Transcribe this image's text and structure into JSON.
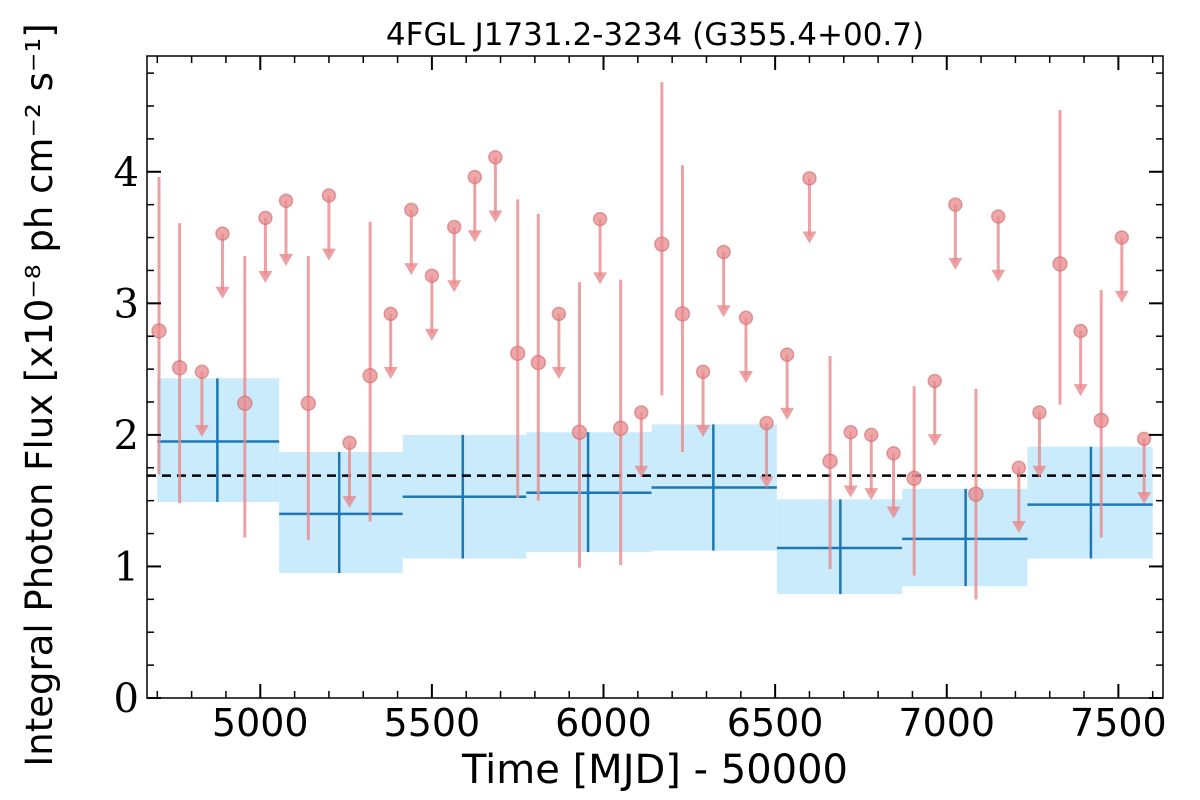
{
  "chart_data": {
    "type": "scatter",
    "title": "4FGL J1731.2-3234 (G355.4+00.7)",
    "xlabel": "Time [MJD] - 50000",
    "ylabel": "Integral Photon Flux [x10⁻⁸ ph cm⁻² s⁻¹]",
    "xlim": [
      4670,
      7630
    ],
    "ylim": [
      0,
      4.88
    ],
    "xticks": [
      5000,
      5500,
      6000,
      6500,
      7000,
      7500
    ],
    "yticks": [
      0,
      1,
      2,
      3,
      4
    ],
    "grid": false,
    "reference_line": {
      "y": 1.69,
      "style": "dashed",
      "color": "#000000"
    },
    "colors": {
      "short_bins": "#e88a8c",
      "long_bins": "#1f77b4",
      "long_bins_band": "#c9ebfb",
      "reference_line": "#000000"
    },
    "series": [
      {
        "label_text": "",
        "style": "points-with-errorbars",
        "detections": [
          {
            "x": 4705,
            "y": 2.79,
            "ylow": 1.7,
            "yhigh": 3.96
          },
          {
            "x": 4765,
            "y": 2.51,
            "ylow": 1.48,
            "yhigh": 3.61
          },
          {
            "x": 4955,
            "y": 2.24,
            "ylow": 1.22,
            "yhigh": 3.36
          },
          {
            "x": 5140,
            "y": 2.24,
            "ylow": 1.2,
            "yhigh": 3.36
          },
          {
            "x": 5320,
            "y": 2.45,
            "ylow": 1.34,
            "yhigh": 3.62
          },
          {
            "x": 5750,
            "y": 2.62,
            "ylow": 1.52,
            "yhigh": 3.79
          },
          {
            "x": 5810,
            "y": 2.55,
            "ylow": 1.5,
            "yhigh": 3.68
          },
          {
            "x": 5930,
            "y": 2.02,
            "ylow": 0.99,
            "yhigh": 3.16
          },
          {
            "x": 6050,
            "y": 2.05,
            "ylow": 1.01,
            "yhigh": 3.18
          },
          {
            "x": 6170,
            "y": 3.45,
            "ylow": 2.3,
            "yhigh": 4.68
          },
          {
            "x": 6230,
            "y": 2.92,
            "ylow": 1.87,
            "yhigh": 4.05
          },
          {
            "x": 6660,
            "y": 1.8,
            "ylow": 0.98,
            "yhigh": 2.6
          },
          {
            "x": 6905,
            "y": 1.67,
            "ylow": 0.93,
            "yhigh": 2.37
          },
          {
            "x": 7085,
            "y": 1.55,
            "ylow": 0.75,
            "yhigh": 2.35
          },
          {
            "x": 7330,
            "y": 3.3,
            "ylow": 2.23,
            "yhigh": 4.47
          },
          {
            "x": 7450,
            "y": 2.11,
            "ylow": 1.22,
            "yhigh": 3.1
          }
        ],
        "upper_limits": [
          {
            "x": 4830,
            "y": 2.48
          },
          {
            "x": 4890,
            "y": 3.53
          },
          {
            "x": 5015,
            "y": 3.65
          },
          {
            "x": 5075,
            "y": 3.78
          },
          {
            "x": 5200,
            "y": 3.82
          },
          {
            "x": 5260,
            "y": 1.94
          },
          {
            "x": 5380,
            "y": 2.92
          },
          {
            "x": 5440,
            "y": 3.71
          },
          {
            "x": 5500,
            "y": 3.21
          },
          {
            "x": 5565,
            "y": 3.58
          },
          {
            "x": 5625,
            "y": 3.96
          },
          {
            "x": 5685,
            "y": 4.11
          },
          {
            "x": 5870,
            "y": 2.92
          },
          {
            "x": 5990,
            "y": 3.64
          },
          {
            "x": 6110,
            "y": 2.17
          },
          {
            "x": 6290,
            "y": 2.48
          },
          {
            "x": 6350,
            "y": 3.39
          },
          {
            "x": 6415,
            "y": 2.89
          },
          {
            "x": 6475,
            "y": 2.09
          },
          {
            "x": 6535,
            "y": 2.61
          },
          {
            "x": 6600,
            "y": 3.95
          },
          {
            "x": 6720,
            "y": 2.02
          },
          {
            "x": 6780,
            "y": 2.0
          },
          {
            "x": 6845,
            "y": 1.86
          },
          {
            "x": 6965,
            "y": 2.41
          },
          {
            "x": 7025,
            "y": 3.75
          },
          {
            "x": 7150,
            "y": 3.66
          },
          {
            "x": 7210,
            "y": 1.75
          },
          {
            "x": 7270,
            "y": 2.17
          },
          {
            "x": 7390,
            "y": 2.79
          },
          {
            "x": 7510,
            "y": 3.5
          },
          {
            "x": 7575,
            "y": 1.97
          }
        ]
      },
      {
        "label_text": "",
        "style": "binned-with-bands",
        "bins": [
          {
            "x0": 4700,
            "x1": 5055,
            "x": 4875,
            "y": 1.95,
            "ylow": 1.49,
            "yhigh": 2.43
          },
          {
            "x0": 5055,
            "x1": 5415,
            "x": 5230,
            "y": 1.4,
            "ylow": 0.95,
            "yhigh": 1.87
          },
          {
            "x0": 5415,
            "x1": 5775,
            "x": 5590,
            "y": 1.53,
            "ylow": 1.06,
            "yhigh": 2.0
          },
          {
            "x0": 5775,
            "x1": 6140,
            "x": 5955,
            "y": 1.56,
            "ylow": 1.11,
            "yhigh": 2.02
          },
          {
            "x0": 6140,
            "x1": 6505,
            "x": 6320,
            "y": 1.6,
            "ylow": 1.12,
            "yhigh": 2.08
          },
          {
            "x0": 6505,
            "x1": 6870,
            "x": 6690,
            "y": 1.14,
            "ylow": 0.79,
            "yhigh": 1.51
          },
          {
            "x0": 6870,
            "x1": 7235,
            "x": 7055,
            "y": 1.21,
            "ylow": 0.85,
            "yhigh": 1.59
          },
          {
            "x0": 7235,
            "x1": 7600,
            "x": 7420,
            "y": 1.47,
            "ylow": 1.06,
            "yhigh": 1.91
          }
        ]
      }
    ]
  }
}
